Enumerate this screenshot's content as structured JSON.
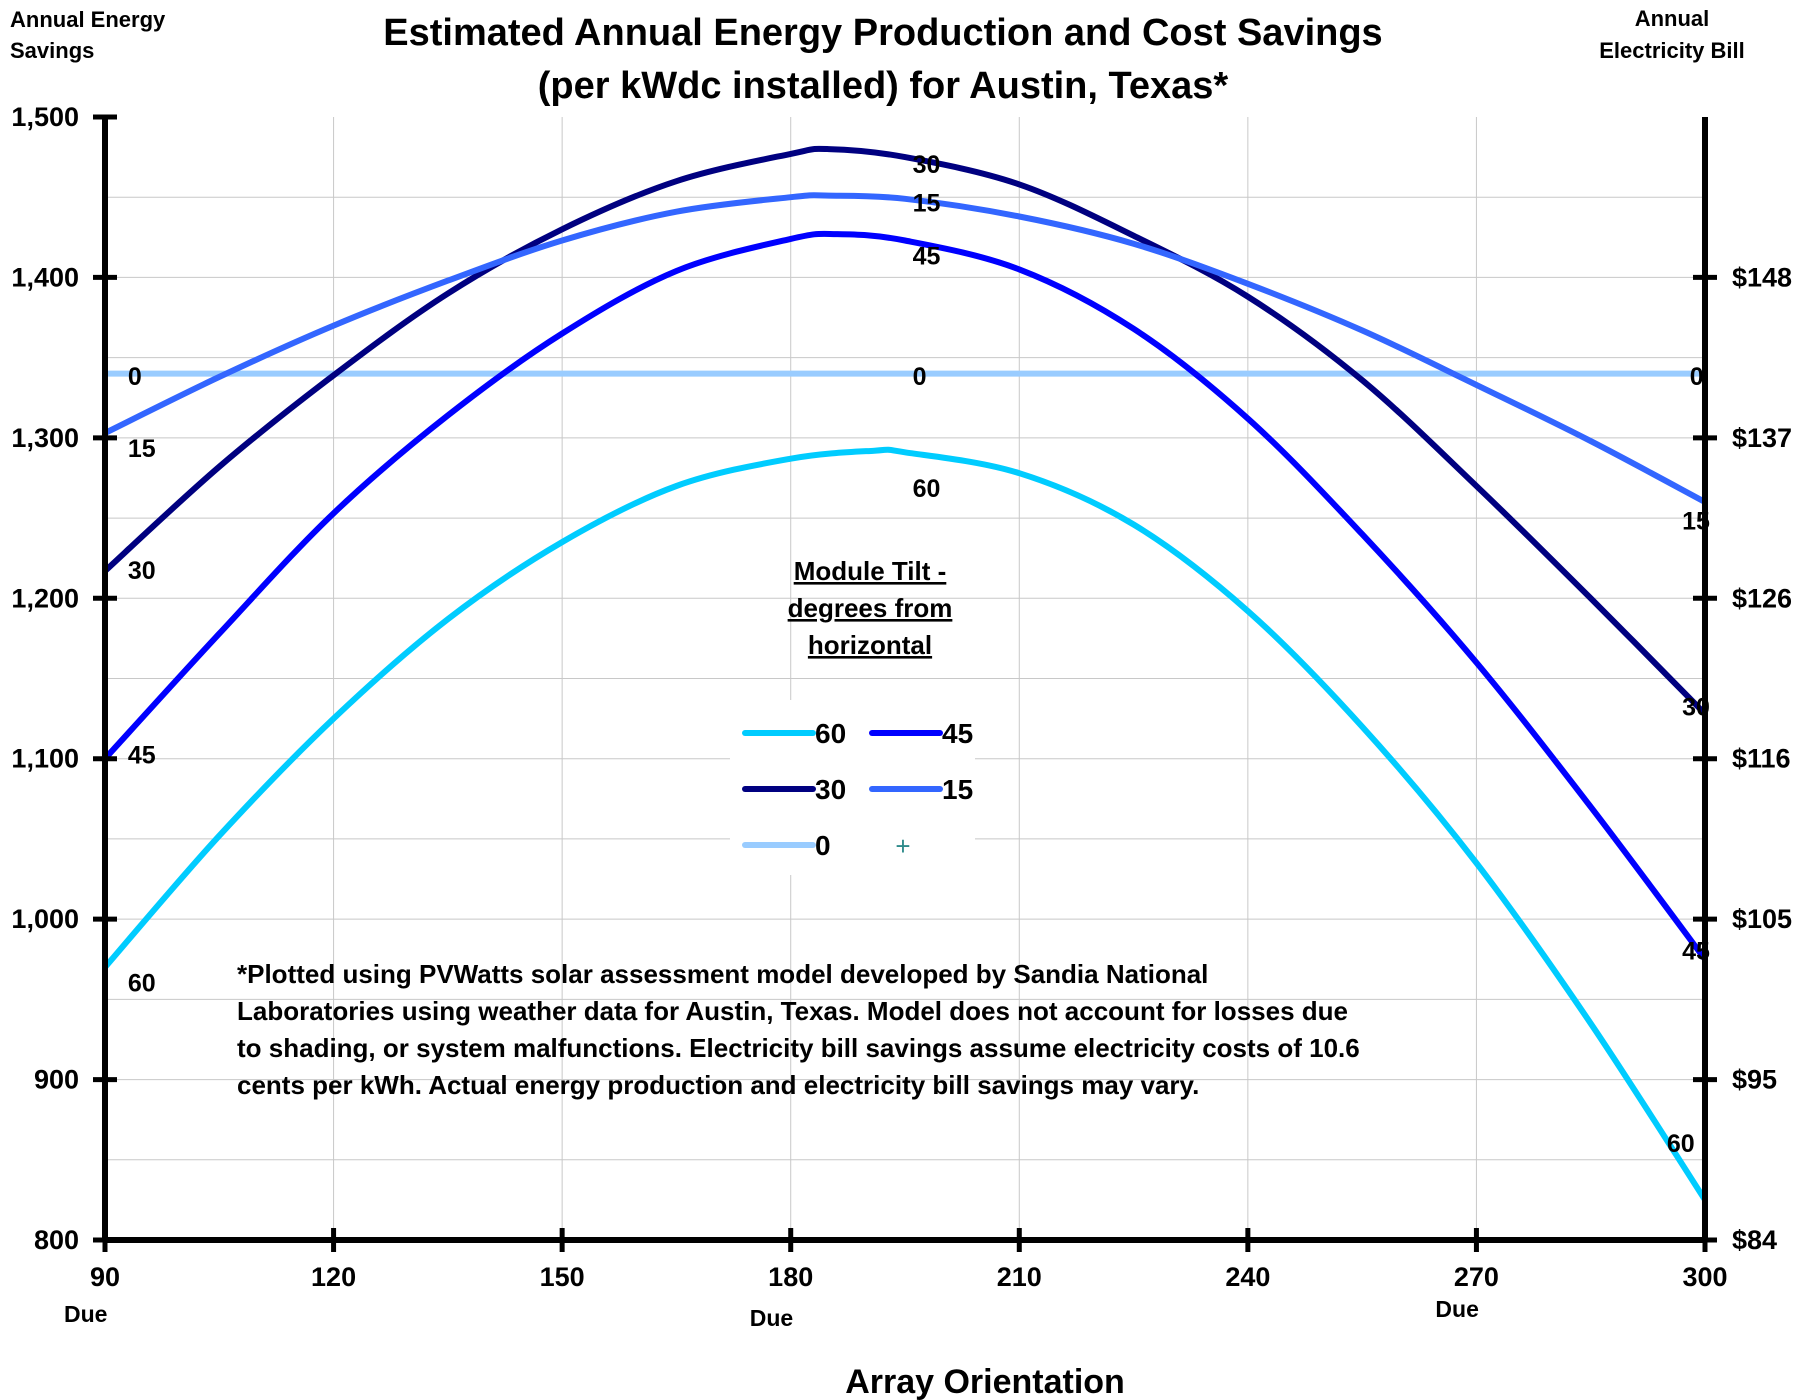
{
  "chart_data": {
    "type": "line",
    "title": "Estimated Annual Energy Production and Cost Savings",
    "subtitle": "(per kWdc installed) for Austin, Texas*",
    "xlabel": "Array Orientation",
    "ylabel_left": "Annual Energy Savings",
    "ylabel_right": "Annual Electricity Bill",
    "xlim": [
      90,
      300
    ],
    "ylim": [
      800,
      1500
    ],
    "x_ticks": [
      90,
      120,
      150,
      180,
      210,
      240,
      270,
      300
    ],
    "x_tick_labels": [
      "90",
      "120",
      "150",
      "180",
      "210",
      "240",
      "270",
      "300"
    ],
    "x_sub_labels": [
      {
        "x": 90,
        "text": "Due"
      },
      {
        "x": 180,
        "text": "Due"
      },
      {
        "x": 270,
        "text": "Due"
      }
    ],
    "y_ticks": [
      800,
      900,
      1000,
      1100,
      1200,
      1300,
      1400,
      1500
    ],
    "y_tick_labels": [
      "800",
      "900",
      "1,000",
      "1,100",
      "1,200",
      "1,300",
      "1,400",
      "1,500"
    ],
    "y2_ticks": [
      {
        "y": 800,
        "label": "$84"
      },
      {
        "y": 900,
        "label": "$95"
      },
      {
        "y": 1000,
        "label": "$105"
      },
      {
        "y": 1100,
        "label": "$116"
      },
      {
        "y": 1200,
        "label": "$126"
      },
      {
        "y": 1300,
        "label": "$137"
      },
      {
        "y": 1400,
        "label": "$148"
      }
    ],
    "grid": true,
    "legend": {
      "title_lines": [
        "Module Tilt -",
        "degrees from",
        "horizontal"
      ],
      "placement": "center",
      "extra_marker": "+"
    },
    "series": [
      {
        "name": "60",
        "color": "#00ccff",
        "x": [
          90,
          105,
          120,
          135,
          150,
          165,
          180,
          191,
          195,
          210,
          225,
          240,
          255,
          270,
          285,
          300
        ],
        "y": [
          970,
          1052,
          1125,
          1187,
          1235,
          1270,
          1287,
          1292,
          1291,
          1278,
          1246,
          1192,
          1120,
          1035,
          935,
          825
        ]
      },
      {
        "name": "45",
        "color": "#0000ff",
        "x": [
          90,
          105,
          120,
          135,
          150,
          165,
          180,
          186,
          195,
          210,
          225,
          240,
          255,
          270,
          285,
          300
        ],
        "y": [
          1100,
          1178,
          1253,
          1314,
          1365,
          1404,
          1424,
          1427,
          1423,
          1405,
          1368,
          1312,
          1240,
          1160,
          1070,
          975
        ]
      },
      {
        "name": "30",
        "color": "#000080",
        "x": [
          90,
          105,
          120,
          135,
          150,
          165,
          180,
          185,
          195,
          210,
          225,
          240,
          255,
          270,
          285,
          300
        ],
        "y": [
          1217,
          1282,
          1339,
          1390,
          1430,
          1460,
          1477,
          1480,
          1475,
          1458,
          1426,
          1388,
          1336,
          1270,
          1200,
          1128
        ]
      },
      {
        "name": "15",
        "color": "#3366ff",
        "x": [
          90,
          105,
          120,
          135,
          150,
          165,
          180,
          185,
          195,
          210,
          225,
          240,
          255,
          270,
          285,
          300
        ],
        "y": [
          1303,
          1338,
          1370,
          1398,
          1423,
          1441,
          1450,
          1451,
          1449,
          1438,
          1421,
          1396,
          1367,
          1333,
          1298,
          1260
        ]
      },
      {
        "name": "0",
        "color": "#99ccff",
        "x": [
          90,
          300
        ],
        "y": [
          1340,
          1340
        ]
      }
    ],
    "annotations": [
      {
        "text": "0",
        "x": 93,
        "y": 1333
      },
      {
        "text": "15",
        "x": 93,
        "y": 1288
      },
      {
        "text": "30",
        "x": 93,
        "y": 1212
      },
      {
        "text": "45",
        "x": 93,
        "y": 1097
      },
      {
        "text": "60",
        "x": 93,
        "y": 955
      },
      {
        "text": "30",
        "x": 196,
        "y": 1465
      },
      {
        "text": "15",
        "x": 196,
        "y": 1441
      },
      {
        "text": "45",
        "x": 196,
        "y": 1408
      },
      {
        "text": "0",
        "x": 196,
        "y": 1333
      },
      {
        "text": "60",
        "x": 196,
        "y": 1263
      },
      {
        "text": "0",
        "x": 298,
        "y": 1333
      },
      {
        "text": "15",
        "x": 297,
        "y": 1243
      },
      {
        "text": "30",
        "x": 297,
        "y": 1127
      },
      {
        "text": "45",
        "x": 297,
        "y": 975
      },
      {
        "text": "60",
        "x": 295,
        "y": 855
      }
    ],
    "footnote_lines": [
      "*Plotted using PVWatts solar assessment model developed by Sandia National",
      "Laboratories using weather data for Austin, Texas. Model does not account for losses due",
      "to shading, or system malfunctions. Electricity bill savings assume electricity costs of 10.6",
      "cents per kWh. Actual energy production and electricity bill savings may vary."
    ]
  }
}
